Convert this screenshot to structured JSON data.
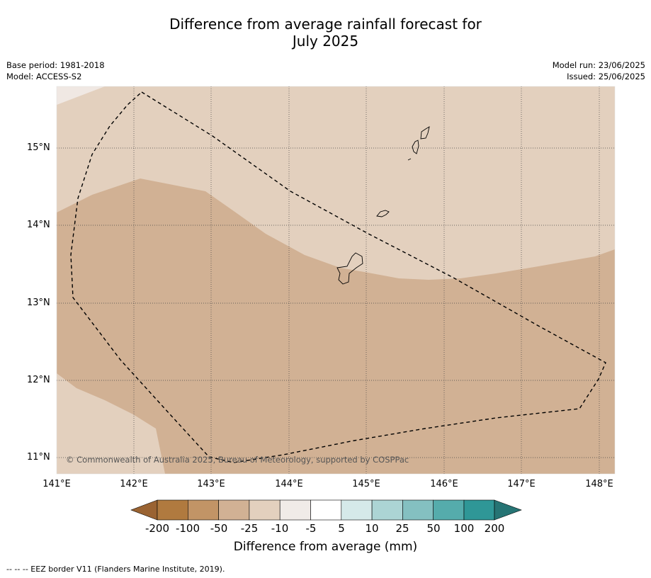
{
  "title_line1": "Difference from average rainfall forecast for",
  "title_line2": "July 2025",
  "meta_left": {
    "base_period": "Base period: 1981-2018",
    "model": "Model: ACCESS-S2"
  },
  "meta_right": {
    "model_run": "Model run: 23/06/2025",
    "issued": "Issued: 25/06/2025"
  },
  "map": {
    "lat_labels": [
      "15°N",
      "14°N",
      "13°N",
      "12°N",
      "11°N"
    ],
    "lon_labels": [
      "141°E",
      "142°E",
      "143°E",
      "144°E",
      "145°E",
      "146°E",
      "147°E",
      "148°E"
    ],
    "copyright": "© Commonwealth of Australia 2025, Bureau of Meteorology, supported by COSPPac",
    "colors": {
      "cat_-25_-10": "#e3d0be",
      "cat_-50_-25": "#d1b194",
      "cat_-10_-5": "#f0e8e3"
    }
  },
  "colorbar": {
    "ticks": [
      "-200",
      "-100",
      "-50",
      "-25",
      "-10",
      "-5",
      "5",
      "10",
      "25",
      "50",
      "100",
      "200"
    ],
    "colors": [
      "#9a6332",
      "#b07a3f",
      "#c29466",
      "#d1b194",
      "#e3d0be",
      "#f0ebe8",
      "#ffffff",
      "#d5e9e9",
      "#acd4d4",
      "#84c0c1",
      "#55acac",
      "#2f9797",
      "#267474"
    ],
    "title": "Difference from average (mm)"
  },
  "footnote": "--  --  -- EEZ border V11 (Flanders Marine Institute, 2019)."
}
